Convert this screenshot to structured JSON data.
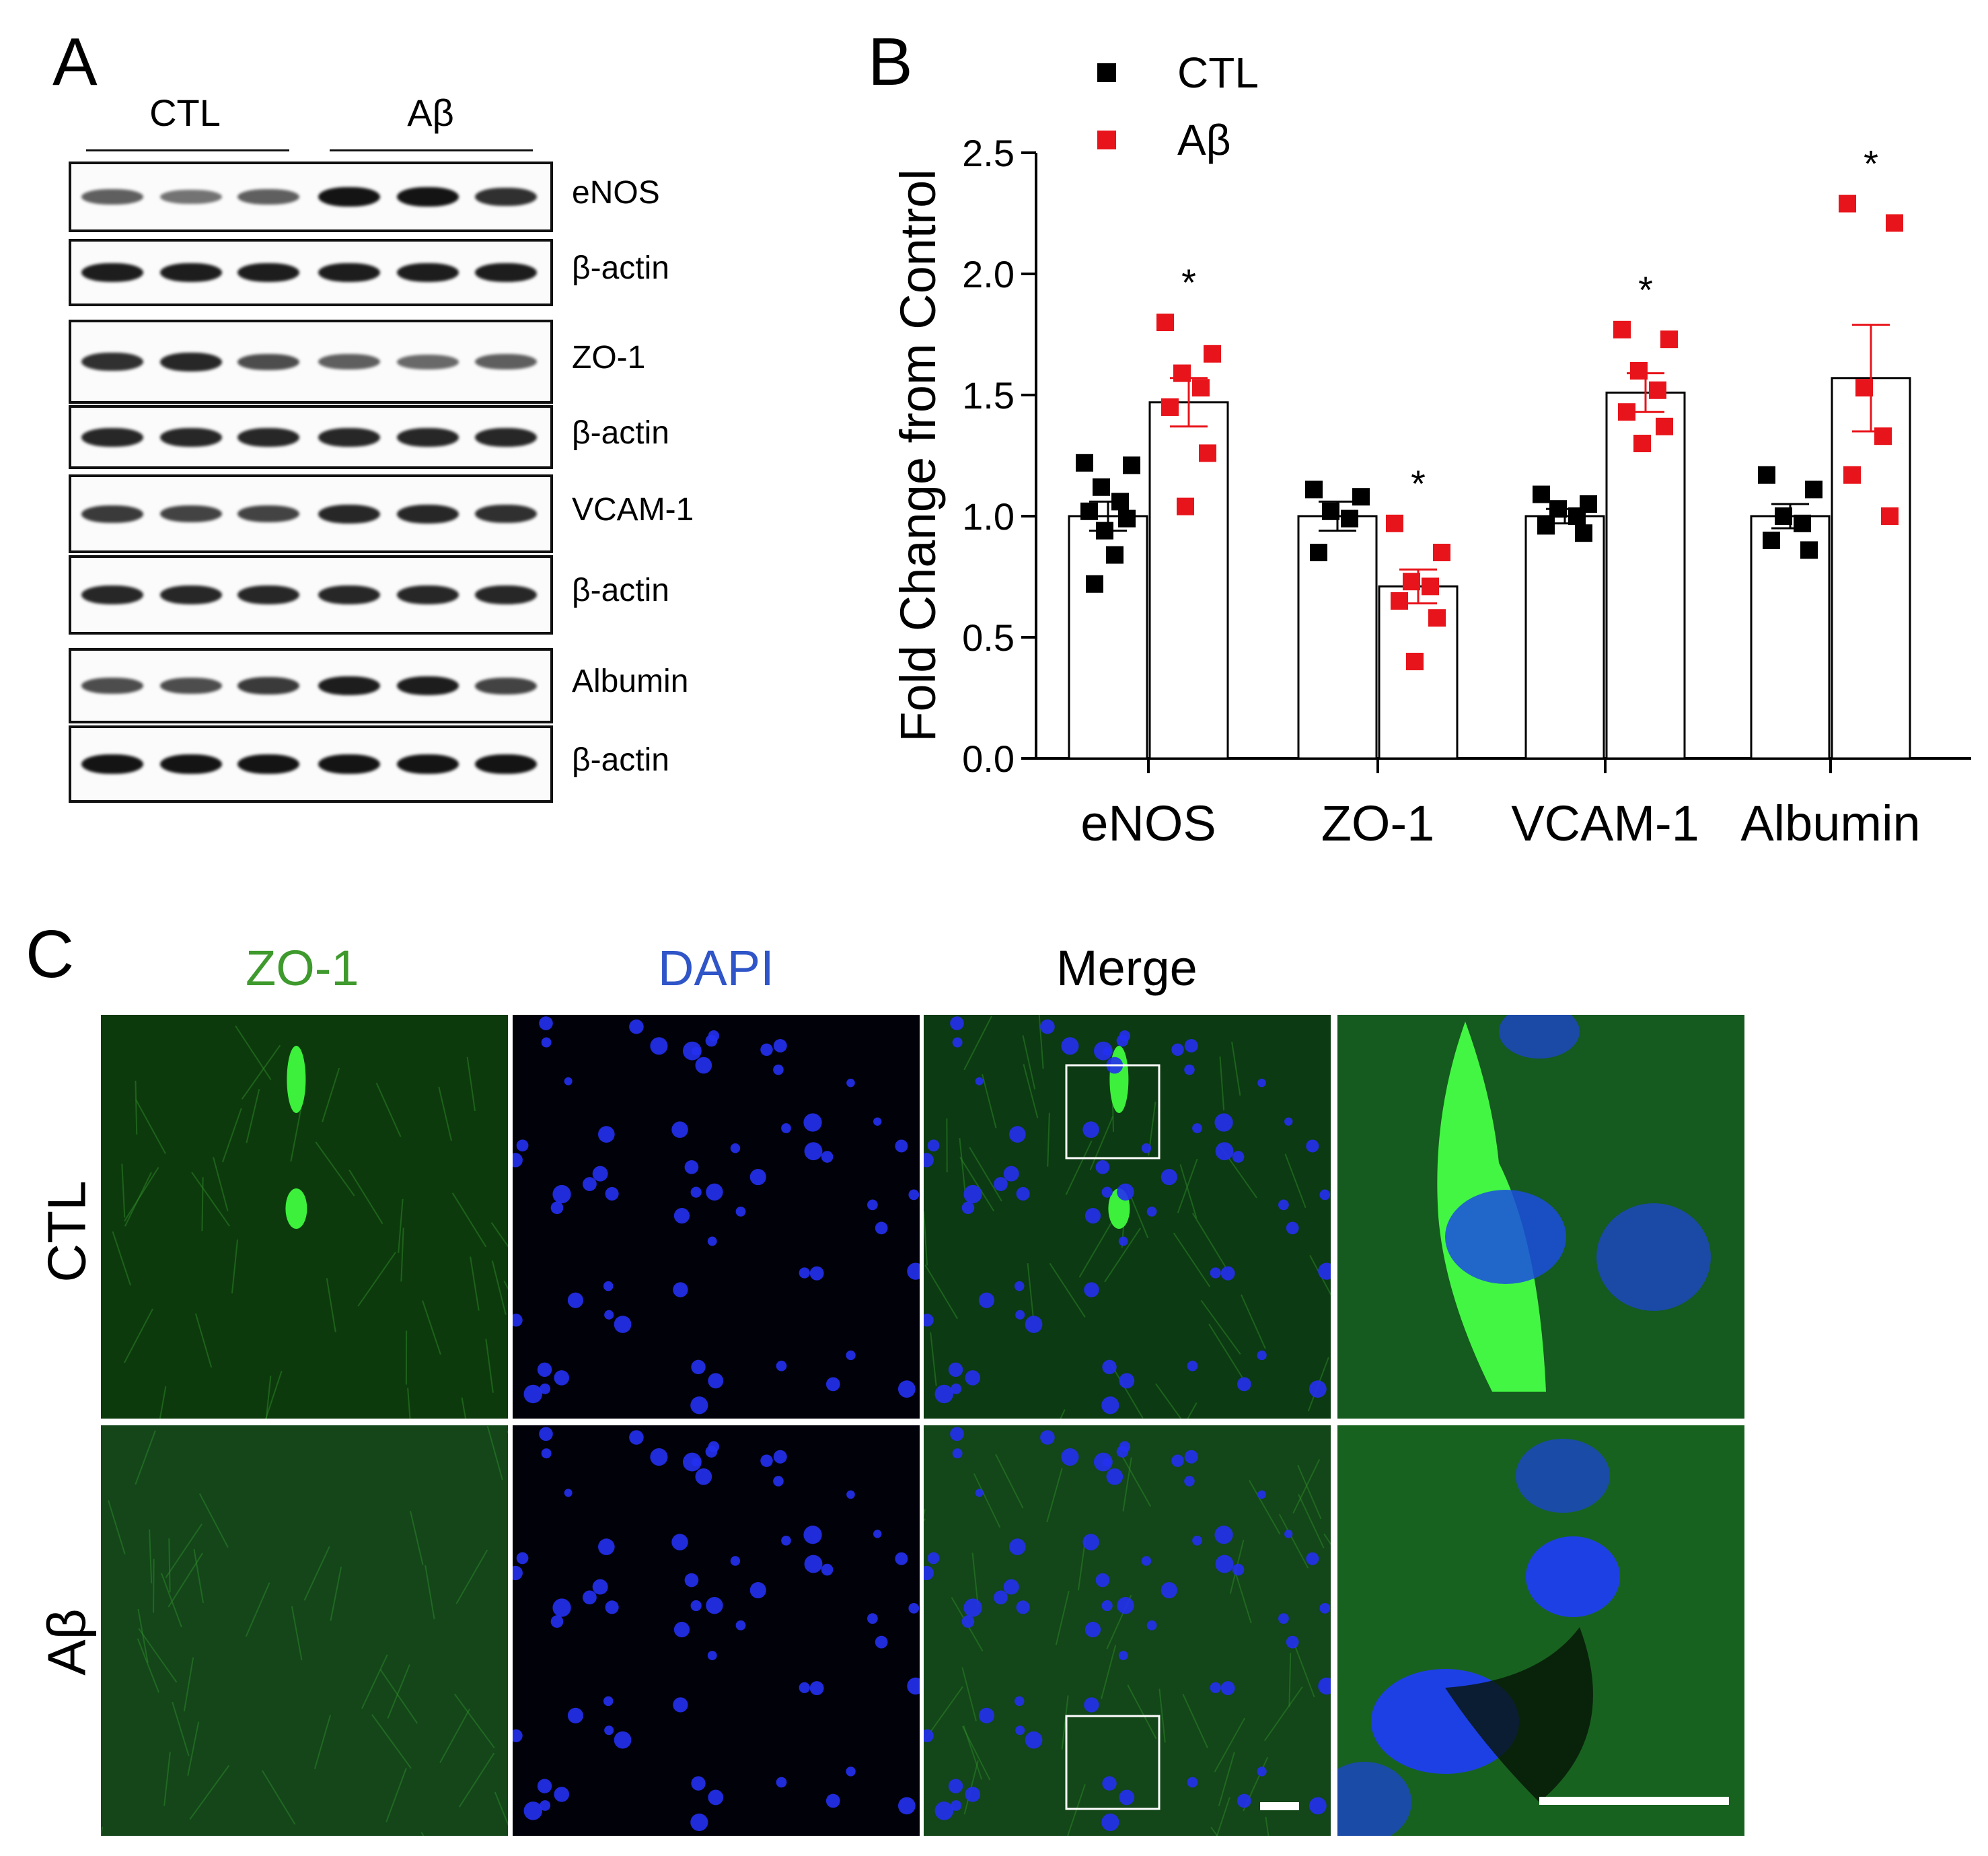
{
  "panels": {
    "a": "A",
    "b": "B",
    "c": "C"
  },
  "panel_a": {
    "groups": [
      "CTL",
      "Aβ"
    ],
    "blots": [
      {
        "label": "eNOS",
        "intensities": [
          0.55,
          0.45,
          0.55,
          0.95,
          0.95,
          0.8
        ]
      },
      {
        "label": "β-actin",
        "intensities": [
          0.9,
          0.9,
          0.9,
          0.9,
          0.9,
          0.9
        ]
      },
      {
        "label": "ZO-1",
        "intensities": [
          0.8,
          0.85,
          0.65,
          0.55,
          0.5,
          0.55
        ]
      },
      {
        "label": "β-actin",
        "intensities": [
          0.85,
          0.85,
          0.85,
          0.85,
          0.85,
          0.85
        ]
      },
      {
        "label": "VCAM-1",
        "intensities": [
          0.75,
          0.7,
          0.7,
          0.85,
          0.85,
          0.8
        ]
      },
      {
        "label": "β-actin",
        "intensities": [
          0.85,
          0.85,
          0.85,
          0.85,
          0.85,
          0.85
        ]
      },
      {
        "label": "Albumin",
        "intensities": [
          0.65,
          0.65,
          0.75,
          0.9,
          0.9,
          0.7
        ]
      },
      {
        "label": "β-actin",
        "intensities": [
          0.95,
          0.95,
          0.95,
          0.95,
          0.95,
          0.95
        ]
      }
    ]
  },
  "chart_data": {
    "type": "bar",
    "title": "",
    "ylabel": "Fold Change from Control",
    "xlabel": "",
    "ylim": [
      0,
      2.5
    ],
    "yticks": [
      "0.0",
      "0.5",
      "1.0",
      "1.5",
      "2.0",
      "2.5"
    ],
    "categories": [
      "eNOS",
      "ZO-1",
      "VCAM-1",
      "Albumin"
    ],
    "grid": false,
    "legend": "top-left",
    "series": [
      {
        "name": "CTL",
        "color": "#000000",
        "values": [
          1.0,
          1.0,
          1.0,
          1.0
        ],
        "sem": [
          0.06,
          0.06,
          0.03,
          0.05
        ],
        "points": [
          [
            1.22,
            1.21,
            1.12,
            1.06,
            1.02,
            0.99,
            0.94,
            0.84,
            0.72
          ],
          [
            1.11,
            1.08,
            1.02,
            0.99,
            0.85
          ],
          [
            1.09,
            1.05,
            1.03,
            1.0,
            0.96,
            0.93
          ],
          [
            1.17,
            1.11,
            1.0,
            0.97,
            0.9,
            0.86
          ]
        ]
      },
      {
        "name": "Aβ",
        "color": "#e8141b",
        "values": [
          1.47,
          0.71,
          1.51,
          1.57
        ],
        "sem": [
          0.1,
          0.07,
          0.08,
          0.22
        ],
        "points": [
          [
            1.8,
            1.67,
            1.59,
            1.53,
            1.45,
            1.26,
            1.04
          ],
          [
            0.97,
            0.85,
            0.73,
            0.71,
            0.65,
            0.58,
            0.4
          ],
          [
            1.77,
            1.73,
            1.6,
            1.52,
            1.43,
            1.37,
            1.3
          ],
          [
            2.29,
            2.21,
            1.53,
            1.33,
            1.17,
            1.0
          ]
        ]
      }
    ],
    "annotations": [
      "*",
      "*",
      "*",
      "*"
    ]
  },
  "panel_c": {
    "columns": [
      "ZO-1",
      "DAPI",
      "Merge"
    ],
    "rows": [
      "CTL",
      "Aβ"
    ],
    "colors": {
      "zo1": "#3f9a2e",
      "dapi": "#2f55c8",
      "merge": "#000000"
    }
  }
}
